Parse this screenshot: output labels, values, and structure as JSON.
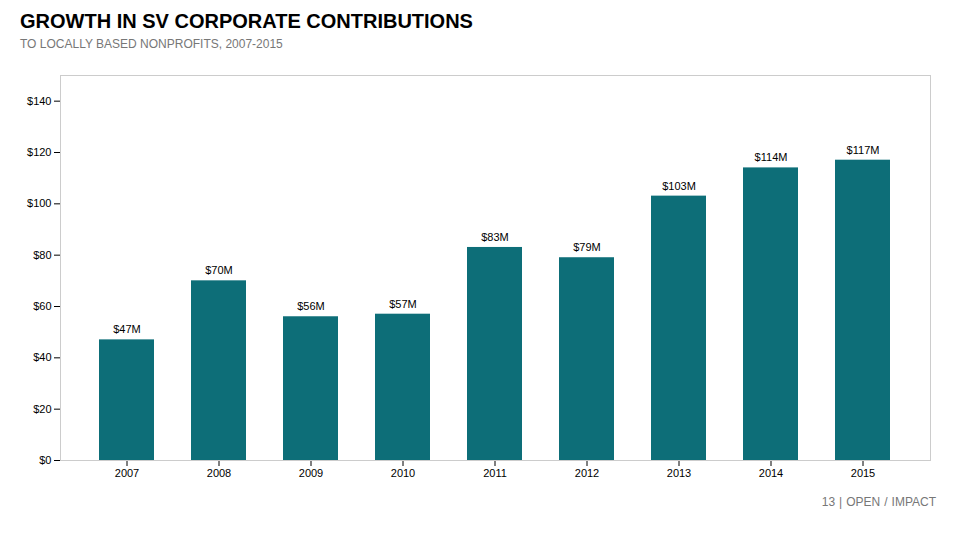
{
  "chart_data": {
    "type": "bar",
    "title": "GROWTH IN SV CORPORATE CONTRIBUTIONS",
    "subtitle": "TO LOCALLY BASED NONPROFITS, 2007-2015",
    "categories": [
      "2007",
      "2008",
      "2009",
      "2010",
      "2011",
      "2012",
      "2013",
      "2014",
      "2015"
    ],
    "values": [
      47,
      70,
      56,
      57,
      83,
      79,
      103,
      114,
      117
    ],
    "value_labels": [
      "$47M",
      "$70M",
      "$56M",
      "$57M",
      "$83M",
      "$79M",
      "$103M",
      "$114M",
      "$117M"
    ],
    "data_labels": true,
    "color": "#0d6e78",
    "ylim": [
      0,
      150
    ],
    "yticks": [
      {
        "value": 0,
        "label": "$0"
      },
      {
        "value": 20,
        "label": "$20"
      },
      {
        "value": 40,
        "label": "$40"
      },
      {
        "value": 60,
        "label": "$60"
      },
      {
        "value": 80,
        "label": "$80"
      },
      {
        "value": 100,
        "label": "$100"
      },
      {
        "value": 120,
        "label": "$120"
      },
      {
        "value": 140,
        "label": "$140"
      }
    ],
    "grid": false,
    "annotations": [
      "13",
      "|",
      "OPEN",
      "/",
      "IMPACT"
    ]
  }
}
